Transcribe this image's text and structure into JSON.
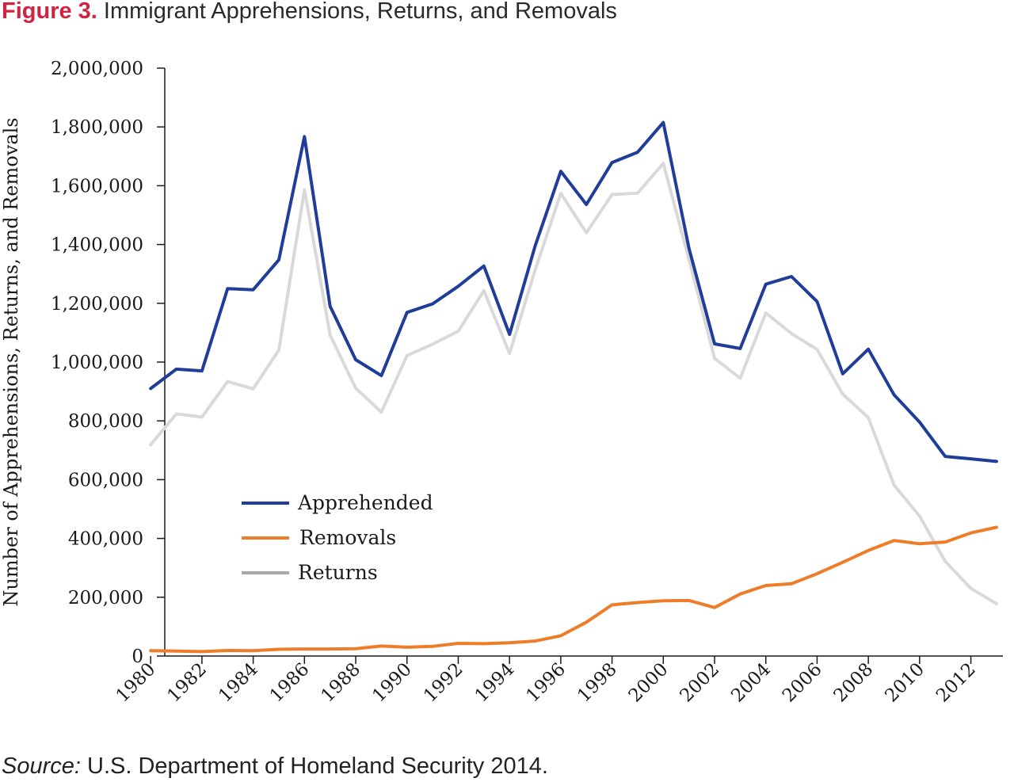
{
  "figure": {
    "number": "Figure 3.",
    "title": "Immigrant Apprehensions, Returns, and Removals"
  },
  "source": {
    "label": "Source:",
    "text": "U.S. Department of Homeland Security 2014."
  },
  "chart_data": {
    "type": "line",
    "title": "Immigrant Apprehensions, Returns, and Removals",
    "xlabel": "",
    "ylabel": "Number of Apprehensions, Returns, and Removals",
    "ylim": [
      0,
      2000000
    ],
    "xlim": [
      1980,
      2013
    ],
    "yticks": [
      0,
      200000,
      400000,
      600000,
      800000,
      1000000,
      1200000,
      1400000,
      1600000,
      1800000,
      2000000
    ],
    "ytick_labels": [
      "0",
      "200,000",
      "400,000",
      "600,000",
      "800,000",
      "1,000,000",
      "1,200,000",
      "1,400,000",
      "1,600,000",
      "1,800,000",
      "2,000,000"
    ],
    "xtick_labels": [
      "1980",
      "1982",
      "1984",
      "1986",
      "1988",
      "1990",
      "1992",
      "1994",
      "1996",
      "1998",
      "2000",
      "2002",
      "2004",
      "2006",
      "2008",
      "2010",
      "2012"
    ],
    "x": [
      1980,
      1981,
      1982,
      1983,
      1984,
      1985,
      1986,
      1987,
      1988,
      1989,
      1990,
      1991,
      1992,
      1993,
      1994,
      1995,
      1996,
      1997,
      1998,
      1999,
      2000,
      2001,
      2002,
      2003,
      2004,
      2005,
      2006,
      2007,
      2008,
      2009,
      2010,
      2011,
      2012,
      2013
    ],
    "grid": false,
    "legend_position": "lower-left",
    "series": [
      {
        "name": "Apprehended",
        "color": "#1f3d99",
        "values": [
          910000,
          976000,
          970000,
          1250000,
          1246000,
          1348000,
          1767000,
          1190000,
          1008000,
          954000,
          1169000,
          1198000,
          1258000,
          1327000,
          1094000,
          1395000,
          1649000,
          1536000,
          1679000,
          1714000,
          1815000,
          1387000,
          1062000,
          1046000,
          1265000,
          1291000,
          1206000,
          960000,
          1044000,
          889000,
          796000,
          679000,
          671000,
          662000
        ]
      },
      {
        "name": "Removals",
        "color": "#ee7d2a",
        "values": [
          18000,
          17000,
          15000,
          19000,
          18000,
          23000,
          24000,
          24000,
          25000,
          34000,
          30000,
          33000,
          43000,
          42000,
          45000,
          51000,
          69000,
          115000,
          174000,
          182000,
          188000,
          189000,
          165000,
          211000,
          240000,
          246000,
          280000,
          319000,
          359000,
          393000,
          382000,
          388000,
          419000,
          438000
        ]
      },
      {
        "name": "Returns",
        "color": "#d9d9d9",
        "values": [
          719000,
          824000,
          813000,
          934000,
          909000,
          1041000,
          1586000,
          1092000,
          911000,
          830000,
          1022000,
          1061000,
          1105000,
          1243000,
          1029000,
          1313000,
          1574000,
          1440000,
          1570000,
          1575000,
          1676000,
          1349000,
          1013000,
          945000,
          1167000,
          1097000,
          1043000,
          891000,
          811000,
          582000,
          476000,
          322000,
          230000,
          178000
        ]
      }
    ]
  }
}
